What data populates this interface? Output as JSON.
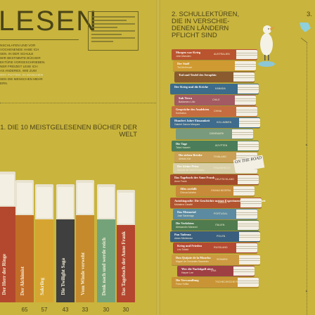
{
  "header": {
    "title": "LESEN",
    "sec1": "1. DIE 10 MEISTGELESENEN BÜCHER DER WELT",
    "sec2": [
      "2. SCHULLEKTÜREN,",
      "DIE IN VERSCHIE-",
      "DENEN LÄNDERN",
      "PFLICHT SIND"
    ],
    "sec3": "3."
  },
  "intro": {
    "lines": [
      "NSCHLAFEN UND VOR",
      "VOCHENENDE HABE ICH",
      "SEN. IN DER SCHULE",
      "WIR BESTIMMTE BÜCHER",
      "EKTÜRE VORGESCHRIEBEN.",
      "NER FREIZEIT LESE ICH",
      "AS ANDERES, WIE ZUM",
      "RRY POTTER. IN MANCHEN",
      "SEN DIE MENSCHEN MEHR",
      "ERN."
    ]
  },
  "left_books": [
    {
      "label": "Der Herr der Ringe",
      "num": "",
      "color": "#b4482e"
    },
    {
      "label": "Der Alchimist",
      "num": "65",
      "color": "#c16d27"
    },
    {
      "label": "Sakrileg",
      "num": "57",
      "color": "#d6a531"
    },
    {
      "label": "Die Twilight Saga",
      "num": "43",
      "color": "#3f3f3f"
    },
    {
      "label": "Vom Winde verweht",
      "num": "33",
      "color": "#c58a2c"
    },
    {
      "label": "Denk nach und werde reich",
      "num": "30",
      "color": "#74a37a"
    },
    {
      "label": "Das Tagebuch der Anne Frank",
      "num": "30",
      "color": "#b4452f"
    }
  ],
  "right_books": [
    {
      "title": "Morgen war Krieg",
      "author": "John Marsden",
      "country": "AUSTRALIEN",
      "color": "#b9542f"
    },
    {
      "title": "Der Stoff",
      "author": "Ted McKeown",
      "country": "",
      "color": "#cf9a32"
    },
    {
      "title": "Tod und Teufel des Seraphin",
      "author": "",
      "country": "",
      "color": "#8a5b2f"
    },
    {
      "title": "Der Krieg und die Kriche",
      "author": "",
      "country": "KANADA",
      "color": "#3d6b8a"
    },
    {
      "title": "Sub Terra",
      "author": "Baldomero Lillo",
      "country": "CHILE",
      "color": "#a35a62"
    },
    {
      "title": "Gespräche des Analekten",
      "author": "Konfuzius",
      "country": "CHINA",
      "color": "#c56d40"
    },
    {
      "title": "Hundert Jahre Einsamkeit",
      "author": "Gabriel García Márquez",
      "country": "KOLUMBIEN",
      "color": "#3f6b8c"
    },
    {
      "title": "",
      "author": "",
      "country": "DÄNEMARK",
      "color": "#7a9a7d"
    },
    {
      "title": "Die Tage",
      "author": "Taha Hussein",
      "country": "ÄGYPTEN",
      "color": "#4b7d5a"
    },
    {
      "title": "Die sieben Brüder",
      "author": "Aleksis Kivi",
      "country": "FINNLAND",
      "color": "#c9a055"
    },
    {
      "title": "Der kleine Prinz",
      "author": "Antoine de Saint-Exupéry",
      "country": "FRANKREICH",
      "color": "#d8cfa8"
    },
    {
      "title": "Das Tagebuch der Anne Frank",
      "author": "Anne Frank",
      "country": "DEUTSCHLAND",
      "color": "#a44b2c"
    },
    {
      "title": "Alles zerfällt",
      "author": "Chinua Achebe",
      "country": "GHANA NIGERIA",
      "color": "#c88b3a"
    },
    {
      "title": "Autobiografie: Die Geschichte meiner Experimente mit der Wahrheit",
      "author": "Mahatma Gandhi",
      "country": "INDIEN",
      "color": "#b2542f"
    },
    {
      "title": "Das Memorial",
      "author": "José Saramago",
      "country": "PORTUGAL",
      "color": "#5c8aa0"
    },
    {
      "title": "Die Verlobten",
      "author": "Alessandro Manzoni",
      "country": "ITALIEN",
      "color": "#4f7b4f"
    },
    {
      "title": "Pan Tadeusz",
      "author": "Adam Mickiewicz",
      "country": "POLEN",
      "color": "#3a5f7e"
    },
    {
      "title": "Krieg und Frieden",
      "author": "Leo Tolstoi",
      "country": "RUSSLAND",
      "color": "#b44a32"
    },
    {
      "title": "Don Quijote de la Mancha",
      "author": "Miguel de Cervantes Saavedra",
      "country": "SPANIEN",
      "color": "#cc9a40"
    },
    {
      "title": "Wer die Nachtigall stört",
      "author": "Harper Lee",
      "country": "USA",
      "color": "#9e3f44"
    },
    {
      "title": "Die Verwandlung",
      "author": "Franz Kafka",
      "country": "TSCHECHISCHE REPUBLIK",
      "color": "#c99435"
    }
  ],
  "note": {
    "text": "ON THE ROAD"
  }
}
